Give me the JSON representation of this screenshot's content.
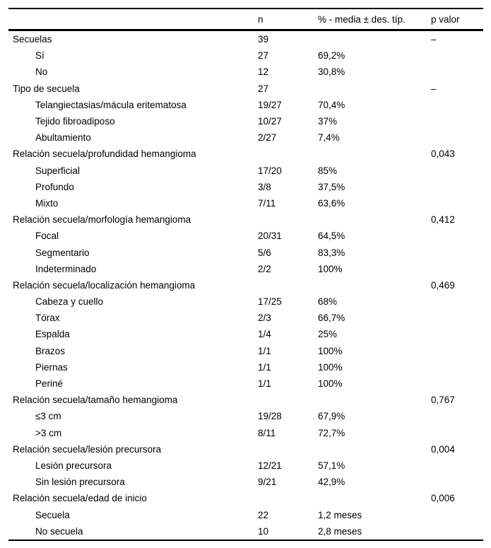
{
  "table": {
    "headers": [
      "",
      "n",
      "% - media ± des. típ.",
      "p valor"
    ],
    "rows": [
      {
        "label": "Secuelas",
        "indent": 0,
        "n": "39",
        "pct": "",
        "p": "–"
      },
      {
        "label": "Sí",
        "indent": 1,
        "n": "27",
        "pct": "69,2%",
        "p": ""
      },
      {
        "label": "No",
        "indent": 1,
        "n": "12",
        "pct": "30,8%",
        "p": ""
      },
      {
        "label": "Tipo de secuela",
        "indent": 0,
        "n": "27",
        "pct": "",
        "p": "–"
      },
      {
        "label": "Telangiectasias/mácula eritematosa",
        "indent": 1,
        "n": "19/27",
        "pct": "70,4%",
        "p": ""
      },
      {
        "label": "Tejido fibroadiposo",
        "indent": 1,
        "n": "10/27",
        "pct": "37%",
        "p": ""
      },
      {
        "label": "Abultamiento",
        "indent": 1,
        "n": "2/27",
        "pct": "7,4%",
        "p": ""
      },
      {
        "label": "Relación secuela/profundidad hemangioma",
        "indent": 0,
        "n": "",
        "pct": "",
        "p": "0,043"
      },
      {
        "label": "Superficial",
        "indent": 1,
        "n": "17/20",
        "pct": "85%",
        "p": ""
      },
      {
        "label": "Profundo",
        "indent": 1,
        "n": "3/8",
        "pct": "37,5%",
        "p": ""
      },
      {
        "label": "Mixto",
        "indent": 1,
        "n": "7/11",
        "pct": "63,6%",
        "p": ""
      },
      {
        "label": "Relación secuela/morfología hemangioma",
        "indent": 0,
        "n": "",
        "pct": "",
        "p": "0,412"
      },
      {
        "label": "Focal",
        "indent": 1,
        "n": "20/31",
        "pct": "64,5%",
        "p": ""
      },
      {
        "label": "Segmentario",
        "indent": 1,
        "n": "5/6",
        "pct": "83,3%",
        "p": ""
      },
      {
        "label": "Indeterminado",
        "indent": 1,
        "n": "2/2",
        "pct": "100%",
        "p": ""
      },
      {
        "label": "Relación secuela/localización hemangioma",
        "indent": 0,
        "n": "",
        "pct": "",
        "p": "0,469"
      },
      {
        "label": "Cabeza y cuello",
        "indent": 1,
        "n": "17/25",
        "pct": "68%",
        "p": ""
      },
      {
        "label": "Tórax",
        "indent": 1,
        "n": "2/3",
        "pct": "66,7%",
        "p": ""
      },
      {
        "label": "Espalda",
        "indent": 1,
        "n": "1/4",
        "pct": "25%",
        "p": ""
      },
      {
        "label": "Brazos",
        "indent": 1,
        "n": "1/1",
        "pct": "100%",
        "p": ""
      },
      {
        "label": "Piernas",
        "indent": 1,
        "n": "1/1",
        "pct": "100%",
        "p": ""
      },
      {
        "label": "Periné",
        "indent": 1,
        "n": "1/1",
        "pct": "100%",
        "p": ""
      },
      {
        "label": "Relación secuela/tamaño hemangioma",
        "indent": 0,
        "n": "",
        "pct": "",
        "p": "0,767"
      },
      {
        "label": "≤3 cm",
        "indent": 1,
        "n": "19/28",
        "pct": "67,9%",
        "p": ""
      },
      {
        "label": ">3 cm",
        "indent": 1,
        "n": "8/11",
        "pct": "72,7%",
        "p": ""
      },
      {
        "label": "Relación secuela/lesión precursora",
        "indent": 0,
        "n": "",
        "pct": "",
        "p": "0,004"
      },
      {
        "label": "Lesión precursora",
        "indent": 1,
        "n": "12/21",
        "pct": "57,1%",
        "p": ""
      },
      {
        "label": "Sin lesión precursora",
        "indent": 1,
        "n": "9/21",
        "pct": "42,9%",
        "p": ""
      },
      {
        "label": "Relación secuela/edad de inicio",
        "indent": 0,
        "n": "",
        "pct": "",
        "p": "0,006"
      },
      {
        "label": "Secuela",
        "indent": 1,
        "n": "22",
        "pct": "1,2 meses",
        "p": ""
      },
      {
        "label": "No secuela",
        "indent": 1,
        "n": "10",
        "pct": "2,8 meses",
        "p": ""
      }
    ],
    "colors": {
      "text": "#000000",
      "background": "#ffffff",
      "rule": "#000000"
    }
  }
}
